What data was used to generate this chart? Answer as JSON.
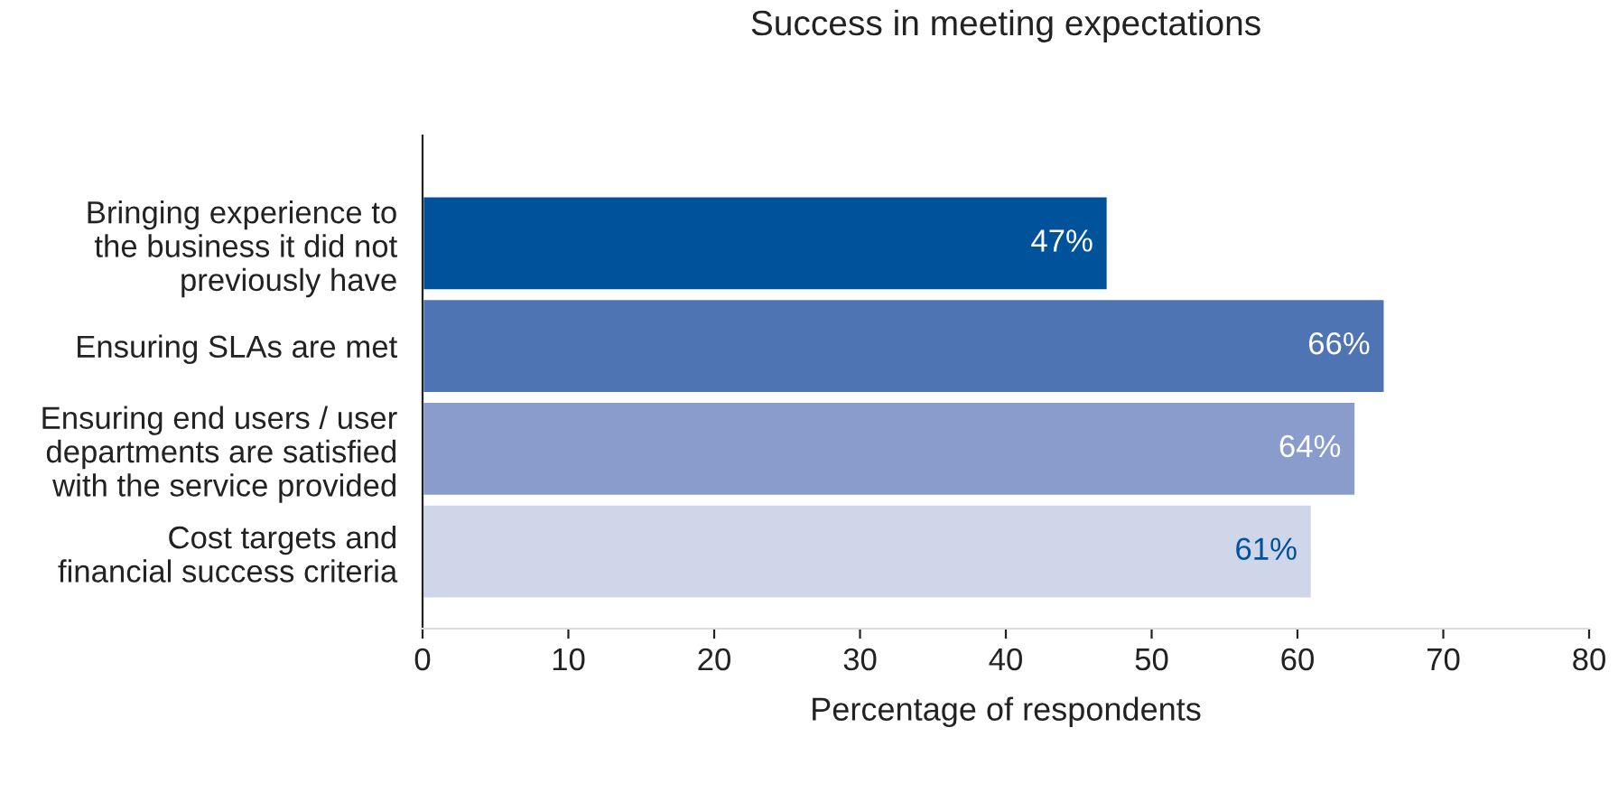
{
  "chart_data": {
    "type": "bar",
    "orientation": "horizontal",
    "title": "Success in meeting expectations",
    "xlabel": "Percentage of respondents",
    "categories": [
      "Bringing experience to\nthe business it did not\npreviously have",
      "Ensuring SLAs are met",
      "Ensuring end users / user\ndepartments are satisfied\nwith the service provided",
      "Cost targets and\nfinancial success criteria"
    ],
    "values": [
      47,
      66,
      64,
      61
    ],
    "colors": [
      "#00529b",
      "#4f74b3",
      "#8a9ccb",
      "#d0d6ea"
    ],
    "value_labels": [
      "47%",
      "66%",
      "64%",
      "61%"
    ],
    "xlim": [
      0,
      80
    ],
    "xticks": [
      0,
      10,
      20,
      30,
      40,
      50,
      60,
      70,
      80
    ],
    "grid": false
  }
}
